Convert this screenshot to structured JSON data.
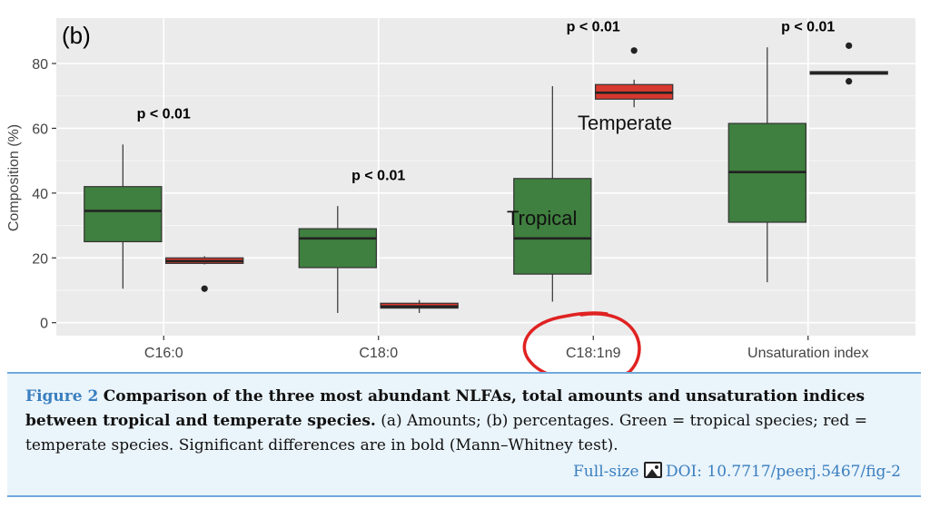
{
  "chart_data": {
    "type": "box",
    "panel_label": "(b)",
    "ylabel": "Composition (%)",
    "ylim": [
      -4,
      94
    ],
    "yticks": [
      0,
      20,
      40,
      60,
      80
    ],
    "categories": [
      "C16:0",
      "C18:0",
      "C18:1n9",
      "Unsaturation index"
    ],
    "series": [
      {
        "name": "Tropical",
        "color": "#3f7f3f",
        "boxes": [
          {
            "whisker_low": 10.5,
            "q1": 25,
            "median": 34.5,
            "q3": 42,
            "whisker_high": 55,
            "outliers": []
          },
          {
            "whisker_low": 3,
            "q1": 17,
            "median": 26,
            "q3": 29,
            "whisker_high": 36,
            "outliers": []
          },
          {
            "whisker_low": 6.5,
            "q1": 15,
            "median": 26,
            "q3": 44.5,
            "whisker_high": 73,
            "outliers": []
          },
          {
            "whisker_low": 12.5,
            "q1": 31,
            "median": 46.5,
            "q3": 61.5,
            "whisker_high": 85,
            "outliers": []
          }
        ]
      },
      {
        "name": "Temperate",
        "color": "#d8392e",
        "boxes": [
          {
            "whisker_low": 18,
            "q1": 18.3,
            "median": 19,
            "q3": 20,
            "whisker_high": 20.5,
            "outliers": [
              10.5
            ]
          },
          {
            "whisker_low": 3,
            "q1": 4.5,
            "median": 5,
            "q3": 6,
            "whisker_high": 7,
            "outliers": []
          },
          {
            "whisker_low": 66.5,
            "q1": 69,
            "median": 71,
            "q3": 73.5,
            "whisker_high": 75,
            "outliers": [
              84
            ]
          },
          {
            "whisker_low": 76.5,
            "q1": 76.7,
            "median": 77,
            "q3": 77.5,
            "whisker_high": 77.5,
            "outliers": [
              74.5,
              85.5
            ]
          }
        ]
      }
    ],
    "significance": [
      "p < 0.01",
      "p < 0.01",
      "p < 0.01",
      "p < 0.01"
    ],
    "annotations": {
      "tropical_label": "Tropical",
      "temperate_label": "Temperate"
    },
    "highlight": "C18:1n9"
  },
  "caption": {
    "label": "Figure 2",
    "title": "Comparison of the three most abundant NLFAs, total amounts and unsaturation indices between tropical and temperate species.",
    "body": "(a) Amounts; (b) percentages. Green = tropical species; red = temperate species. Significant differences are in bold (Mann–Whitney test).",
    "fullsize": "Full-size",
    "doi": "DOI: 10.7717/peerj.5467/fig-2",
    "link_color": "#3a7fbf"
  }
}
